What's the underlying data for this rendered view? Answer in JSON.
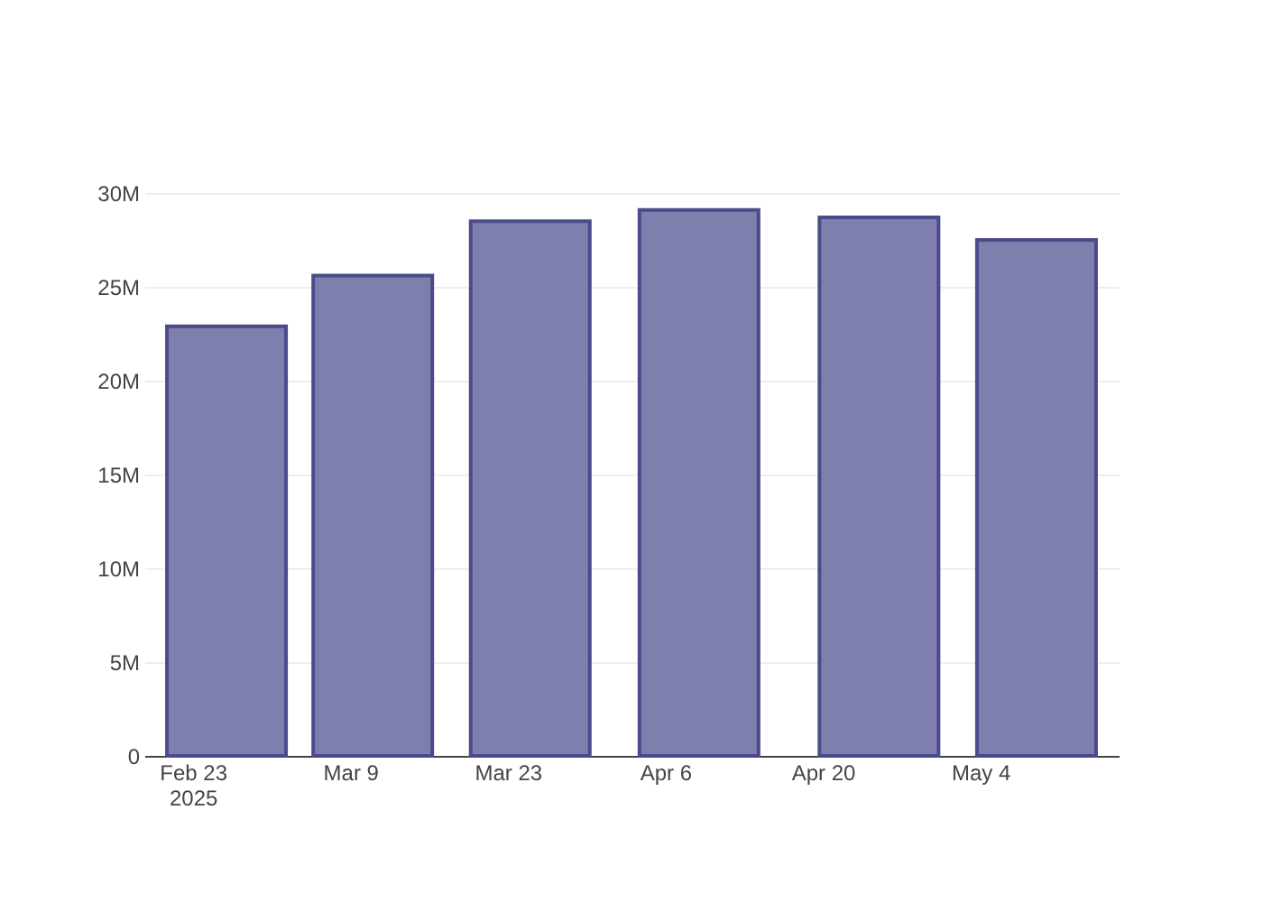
{
  "chart_data": {
    "type": "bar",
    "x": [
      "2025-02-26",
      "2025-03-11",
      "2025-03-25",
      "2025-04-09",
      "2025-04-25",
      "2025-05-09"
    ],
    "values": [
      22900000,
      25600000,
      28500000,
      29100000,
      28700000,
      27500000
    ],
    "color": "#7f7fae",
    "xlim": [
      "2025-02-19T12:00",
      "2025-05-15T12:00"
    ],
    "xticks": [
      {
        "value": "2025-02-23",
        "label": "Feb 23\n2025"
      },
      {
        "value": "2025-03-09",
        "label": "Mar 9"
      },
      {
        "value": "2025-03-23",
        "label": "Mar 23"
      },
      {
        "value": "2025-04-06",
        "label": "Apr 6"
      },
      {
        "value": "2025-04-20",
        "label": "Apr 20"
      },
      {
        "value": "2025-05-04",
        "label": "May 4"
      }
    ],
    "ylim": [
      0,
      30000000
    ],
    "yticks": [
      {
        "value": 0,
        "label": "0"
      },
      {
        "value": 5000000,
        "label": "5M"
      },
      {
        "value": 10000000,
        "label": "10M"
      },
      {
        "value": 15000000,
        "label": "15M"
      },
      {
        "value": 20000000,
        "label": "20M"
      },
      {
        "value": 25000000,
        "label": "25M"
      },
      {
        "value": 30000000,
        "label": "30M"
      }
    ],
    "grid": "y"
  }
}
